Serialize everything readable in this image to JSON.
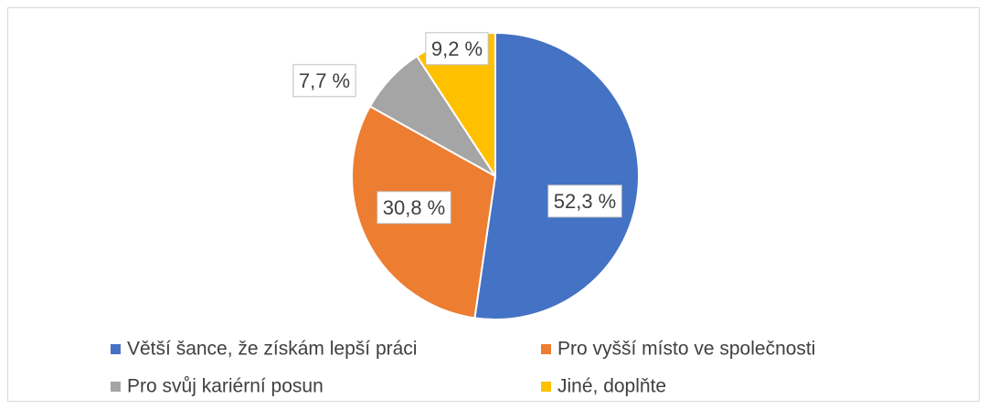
{
  "chart_data": {
    "type": "pie",
    "categories": [
      "Větší šance, že získám lepší práci",
      "Pro vyšší místo ve společnosti",
      "Pro svůj kariérní posun",
      "Jiné, doplňte"
    ],
    "values": [
      52.3,
      30.8,
      7.7,
      9.2
    ],
    "value_labels": [
      "52,3 %",
      "30,8 %",
      "7,7 %",
      "9,2 %"
    ],
    "colors": [
      "#4472c4",
      "#ed7d31",
      "#a5a5a5",
      "#ffc000"
    ],
    "legend": "bottom"
  }
}
